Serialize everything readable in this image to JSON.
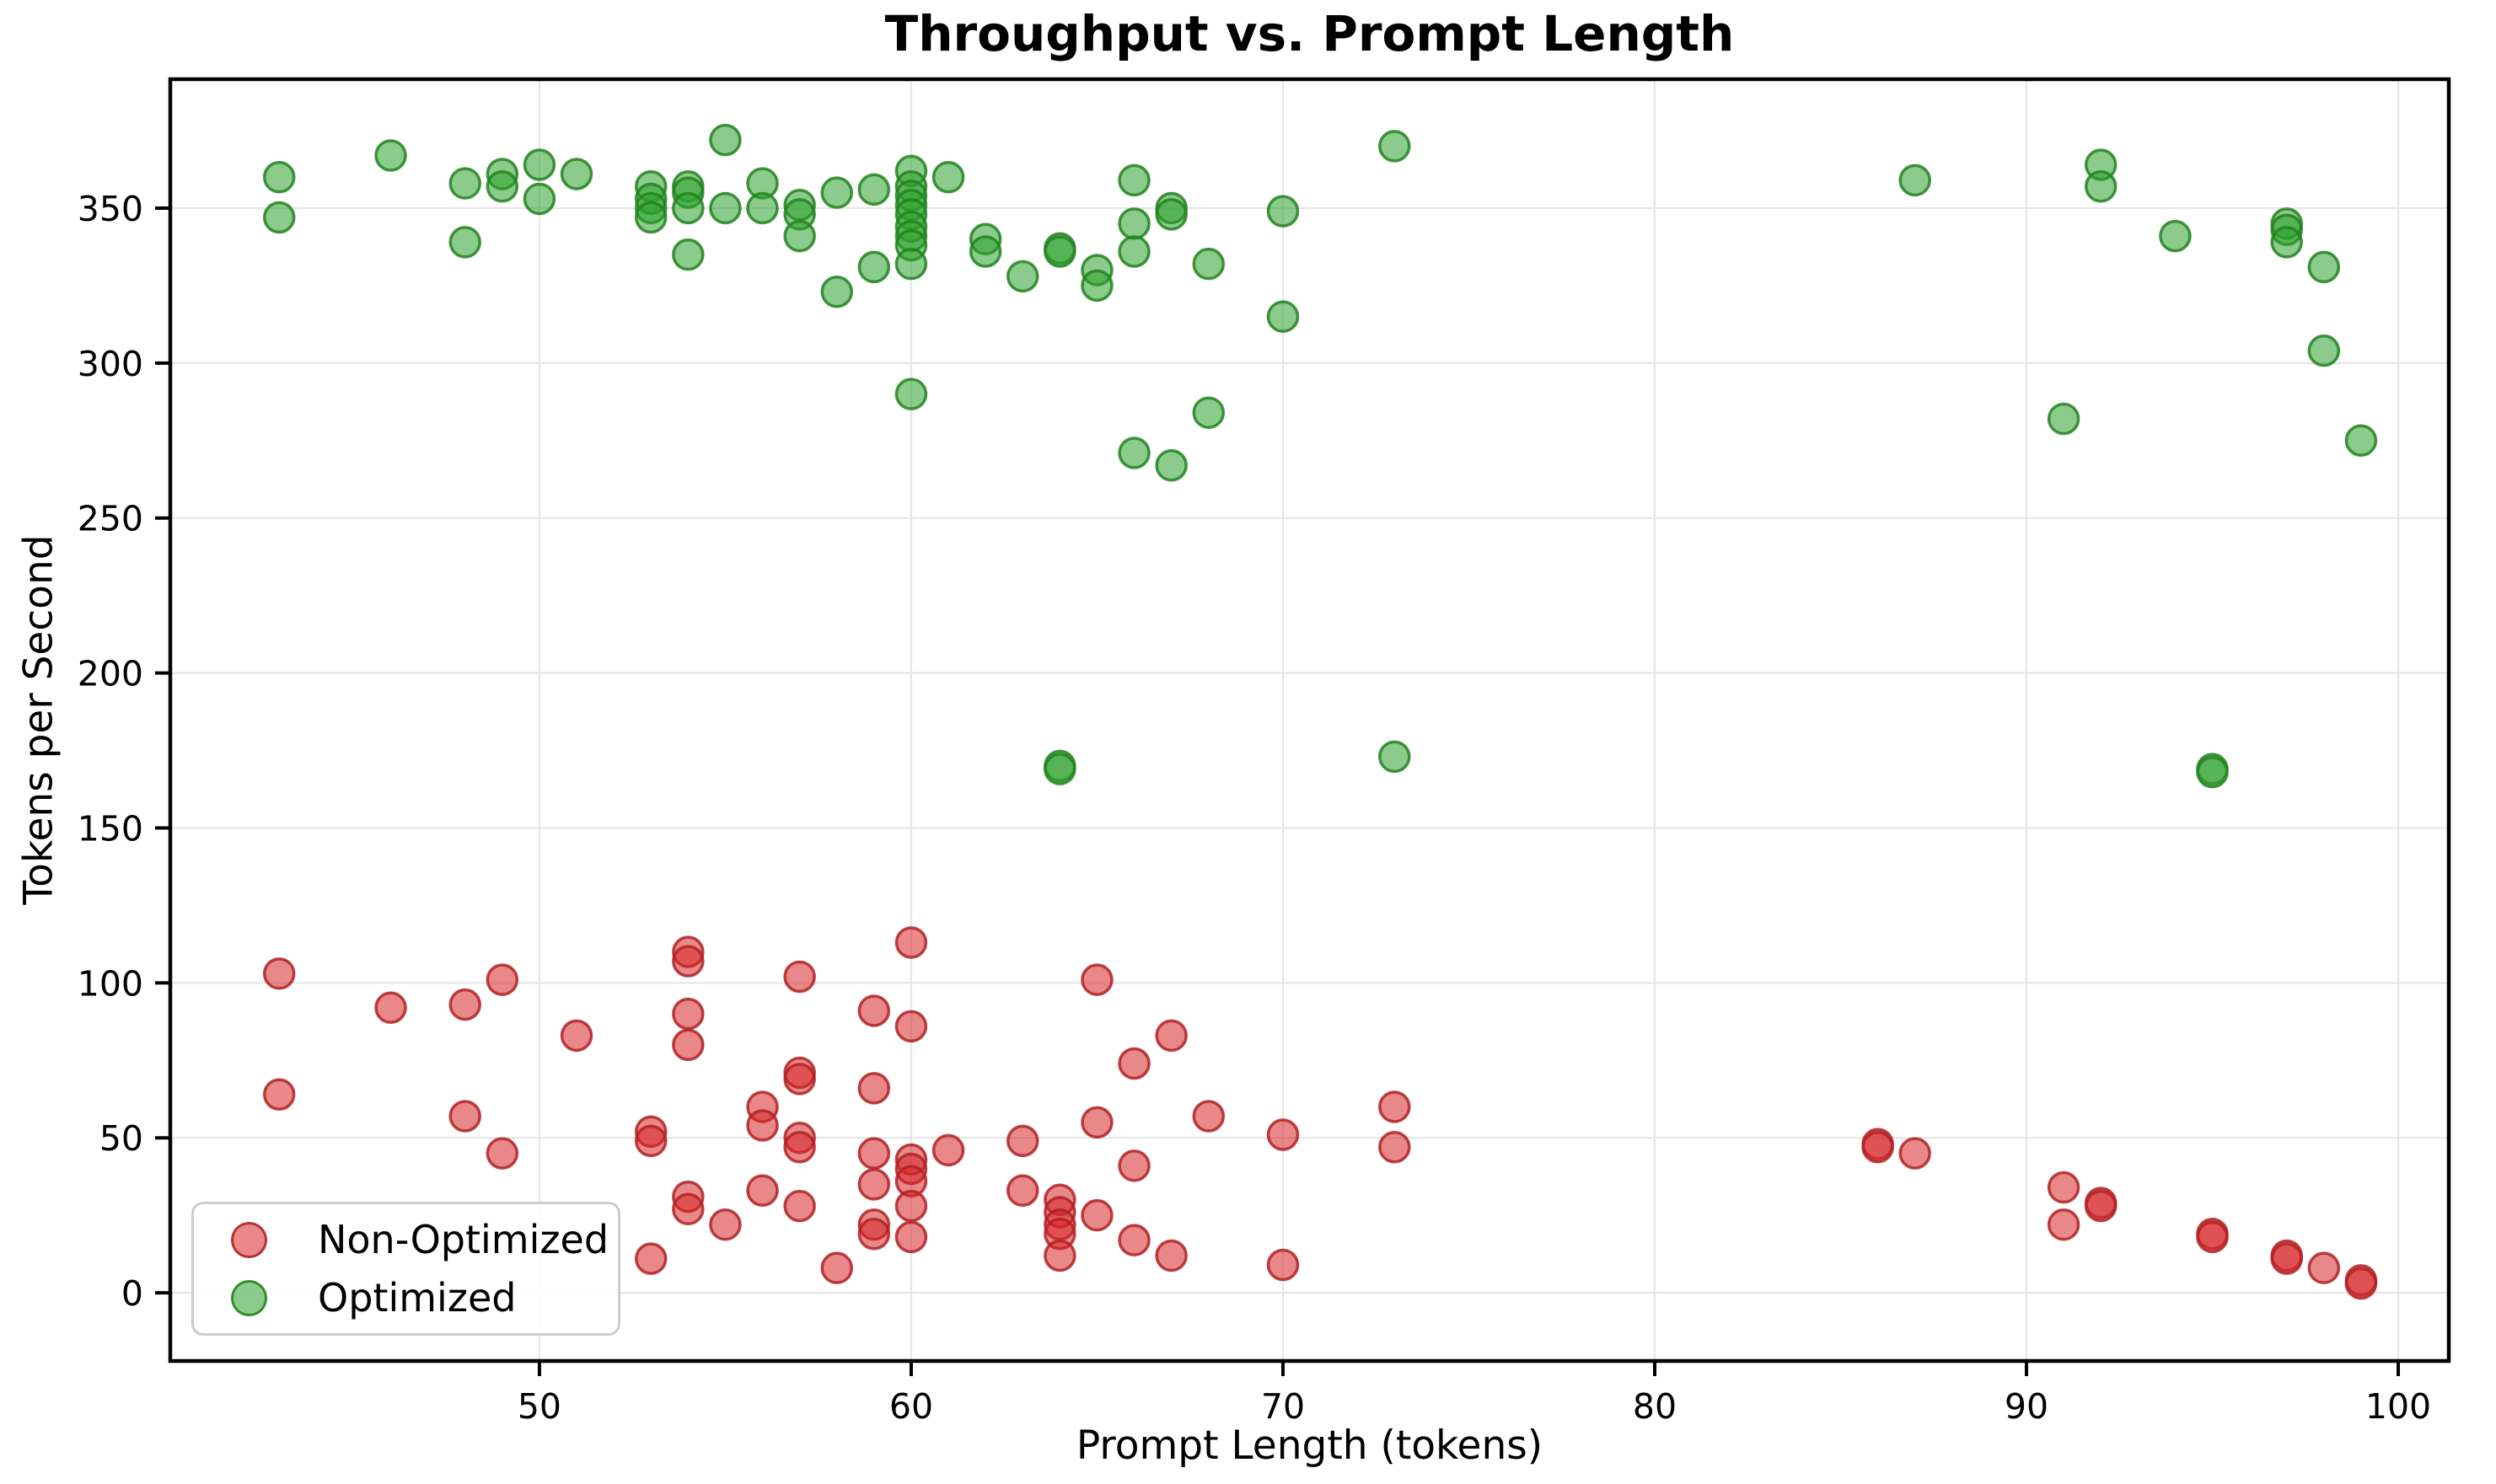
{
  "chart_data": {
    "type": "scatter",
    "title": "Throughput vs. Prompt Length",
    "xlabel": "Prompt Length (tokens)",
    "ylabel": "Tokens per Second",
    "xlim": [
      40.07,
      101.36
    ],
    "ylim": [
      -22,
      391.6
    ],
    "x_ticks": [
      50,
      60,
      70,
      80,
      90,
      100
    ],
    "y_ticks": [
      0,
      50,
      100,
      150,
      200,
      250,
      300,
      350
    ],
    "grid": true,
    "legend_position": "lower left",
    "marker": {
      "radius": 17.5,
      "stroke_width": 3.5,
      "fill_opacity": 0.55,
      "stroke_opacity": 0.85
    },
    "series": [
      {
        "name": "Non-Optimized",
        "fill": "#d62728",
        "stroke": "#b02125",
        "points": [
          [
            43,
            103
          ],
          [
            43,
            64
          ],
          [
            46,
            92
          ],
          [
            48,
            93
          ],
          [
            48,
            57
          ],
          [
            49,
            101
          ],
          [
            49,
            45
          ],
          [
            51,
            83
          ],
          [
            53,
            52
          ],
          [
            53,
            49
          ],
          [
            53,
            11
          ],
          [
            54,
            110
          ],
          [
            54,
            107
          ],
          [
            54,
            90
          ],
          [
            54,
            80
          ],
          [
            54,
            31
          ],
          [
            54,
            27
          ],
          [
            55,
            22
          ],
          [
            56,
            60
          ],
          [
            56,
            54
          ],
          [
            56,
            33
          ],
          [
            57,
            102
          ],
          [
            57,
            71
          ],
          [
            57,
            69
          ],
          [
            57,
            50
          ],
          [
            57,
            47
          ],
          [
            57,
            28
          ],
          [
            58,
            8
          ],
          [
            59,
            91
          ],
          [
            59,
            66
          ],
          [
            59,
            45
          ],
          [
            59,
            35
          ],
          [
            59,
            22
          ],
          [
            59,
            19
          ],
          [
            60,
            113
          ],
          [
            60,
            86
          ],
          [
            60,
            43
          ],
          [
            60,
            40
          ],
          [
            60,
            36
          ],
          [
            60,
            28
          ],
          [
            60,
            18
          ],
          [
            61,
            46
          ],
          [
            63,
            49
          ],
          [
            63,
            33
          ],
          [
            64,
            30
          ],
          [
            64,
            26
          ],
          [
            64,
            22
          ],
          [
            64,
            19
          ],
          [
            64,
            12
          ],
          [
            65,
            101
          ],
          [
            65,
            55
          ],
          [
            65,
            25
          ],
          [
            66,
            74
          ],
          [
            66,
            41
          ],
          [
            66,
            17
          ],
          [
            67,
            83
          ],
          [
            67,
            12
          ],
          [
            68,
            57
          ],
          [
            70,
            51
          ],
          [
            70,
            9
          ],
          [
            73,
            60
          ],
          [
            73,
            47
          ],
          [
            86,
            48
          ],
          [
            86,
            47
          ],
          [
            87,
            45
          ],
          [
            91,
            34
          ],
          [
            91,
            22
          ],
          [
            92,
            29
          ],
          [
            92,
            28
          ],
          [
            95,
            19
          ],
          [
            95,
            18
          ],
          [
            97,
            12
          ],
          [
            97,
            11
          ],
          [
            98,
            8
          ],
          [
            99,
            4
          ],
          [
            99,
            3
          ]
        ]
      },
      {
        "name": "Optimized",
        "fill": "#2ca02c",
        "stroke": "#22821f",
        "points": [
          [
            43,
            360
          ],
          [
            43,
            347
          ],
          [
            46,
            367
          ],
          [
            48,
            358
          ],
          [
            48,
            339
          ],
          [
            49,
            361
          ],
          [
            49,
            357
          ],
          [
            50,
            364
          ],
          [
            50,
            353
          ],
          [
            51,
            361
          ],
          [
            53,
            357
          ],
          [
            53,
            353
          ],
          [
            53,
            350
          ],
          [
            53,
            347
          ],
          [
            54,
            357
          ],
          [
            54,
            355
          ],
          [
            54,
            350
          ],
          [
            54,
            335
          ],
          [
            55,
            372
          ],
          [
            55,
            350
          ],
          [
            56,
            358
          ],
          [
            56,
            350
          ],
          [
            57,
            351
          ],
          [
            57,
            348
          ],
          [
            57,
            341
          ],
          [
            58,
            355
          ],
          [
            58,
            323
          ],
          [
            59,
            356
          ],
          [
            59,
            331
          ],
          [
            60,
            362
          ],
          [
            60,
            357
          ],
          [
            60,
            354
          ],
          [
            60,
            351
          ],
          [
            60,
            348
          ],
          [
            60,
            344
          ],
          [
            60,
            341
          ],
          [
            60,
            338
          ],
          [
            60,
            332
          ],
          [
            60,
            290
          ],
          [
            61,
            360
          ],
          [
            62,
            340
          ],
          [
            62,
            336
          ],
          [
            63,
            328
          ],
          [
            64,
            337
          ],
          [
            64,
            336
          ],
          [
            64,
            170
          ],
          [
            64,
            169
          ],
          [
            65,
            330
          ],
          [
            65,
            325
          ],
          [
            66,
            359
          ],
          [
            66,
            345
          ],
          [
            66,
            336
          ],
          [
            66,
            271
          ],
          [
            67,
            350
          ],
          [
            67,
            348
          ],
          [
            67,
            267
          ],
          [
            68,
            332
          ],
          [
            68,
            284
          ],
          [
            70,
            349
          ],
          [
            70,
            315
          ],
          [
            73,
            370
          ],
          [
            73,
            173
          ],
          [
            87,
            359
          ],
          [
            91,
            282
          ],
          [
            92,
            364
          ],
          [
            92,
            357
          ],
          [
            94,
            341
          ],
          [
            95,
            169
          ],
          [
            95,
            168
          ],
          [
            97,
            345
          ],
          [
            97,
            343
          ],
          [
            97,
            339
          ],
          [
            98,
            331
          ],
          [
            98,
            304
          ],
          [
            99,
            275
          ]
        ]
      }
    ]
  },
  "colors": {
    "background": "#ffffff",
    "grid": "#e6e6e6",
    "spine": "#000000",
    "tick": "#000000",
    "text": "#000000",
    "tick_label_size": 41,
    "legend_border": "#cccccc"
  },
  "legend": {
    "items": [
      {
        "label": "Non-Optimized"
      },
      {
        "label": "Optimized"
      }
    ]
  }
}
